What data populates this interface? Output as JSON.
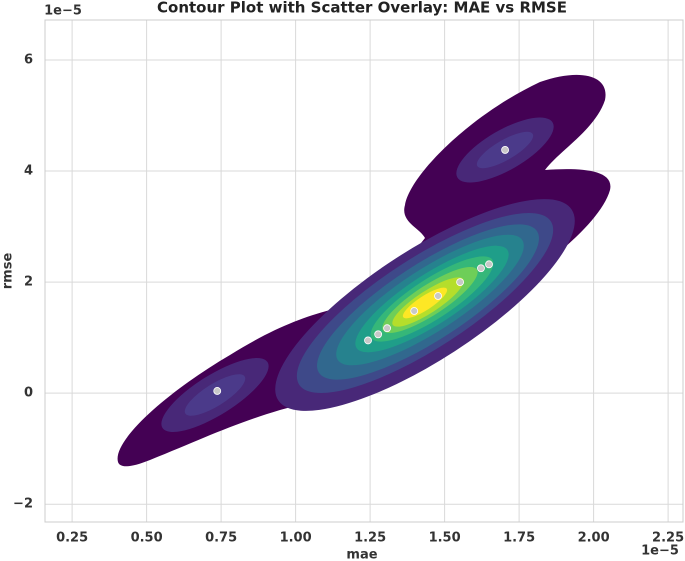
{
  "chart_data": {
    "type": "scatter",
    "title": "Contour Plot with Scatter Overlay: MAE vs RMSE",
    "x_label": "mae",
    "y_label": "rmse",
    "x_offset_label": "1e−5",
    "y_offset_label": "1e−5",
    "x": [
      0.737,
      1.703,
      1.243,
      1.277,
      1.307,
      1.398,
      1.478,
      1.552,
      1.622,
      1.649
    ],
    "values": [
      0.04,
      4.38,
      0.95,
      1.06,
      1.17,
      1.48,
      1.75,
      2.0,
      2.25,
      2.32
    ],
    "color": "#c8c8c8",
    "xlim": [
      0.159,
      2.3
    ],
    "ylim": [
      -2.32,
      6.72
    ],
    "xticks": [
      0.25,
      {
        "value": 0.5,
        "label": "0.50"
      },
      0.75,
      {
        "value": 1,
        "label": "1.00"
      },
      1.25,
      {
        "value": 1.5,
        "label": "1.50"
      },
      1.75,
      {
        "value": 2,
        "label": "2.00"
      },
      2.25
    ],
    "yticks": [
      {
        "value": -2,
        "label": "−2"
      },
      0,
      2,
      4,
      6
    ],
    "grid": true
  }
}
